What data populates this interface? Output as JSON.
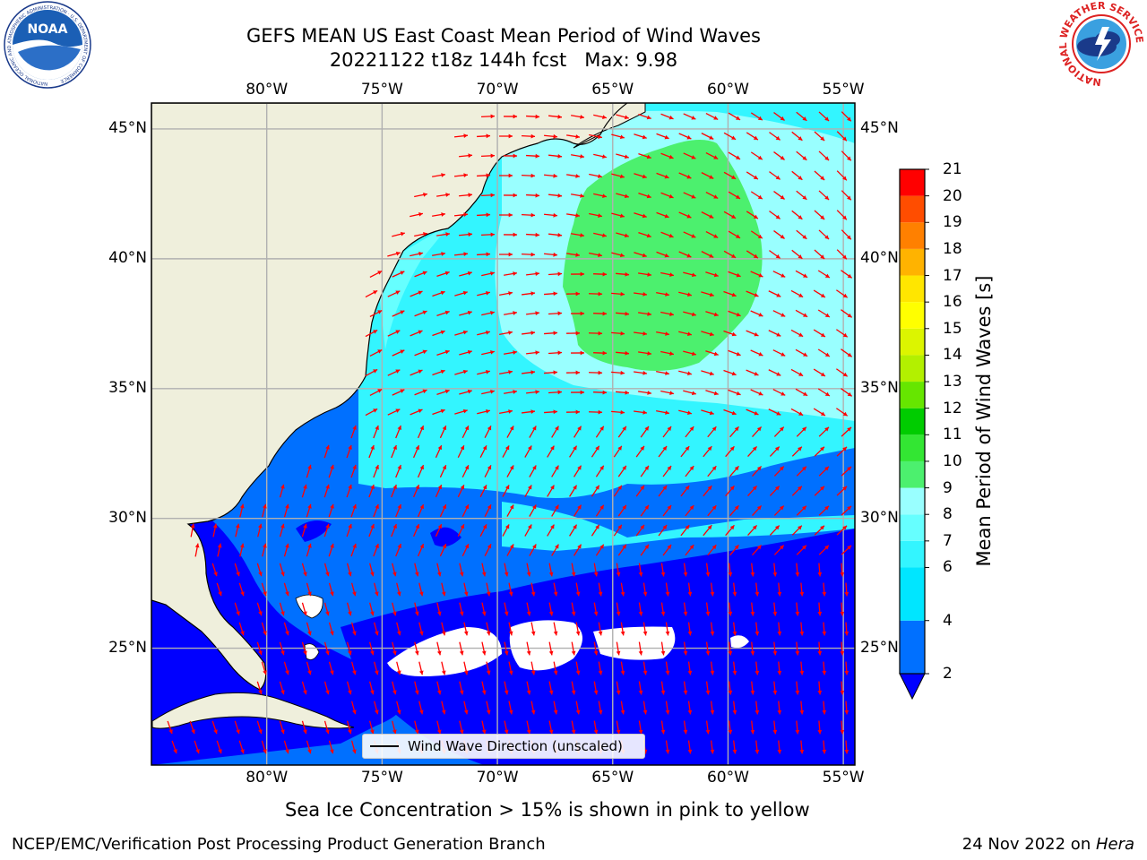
{
  "header": {
    "title_line1": "GEFS MEAN US East Coast Mean Period of Wind Waves",
    "title_line2": "20221122 t18z 144h fcst   Max: 9.98"
  },
  "map": {
    "lon_ticks": [
      "80°W",
      "75°W",
      "70°W",
      "65°W",
      "60°W",
      "55°W"
    ],
    "lat_ticks": [
      "45°N",
      "40°N",
      "35°N",
      "30°N",
      "25°N"
    ],
    "lon_range": [
      -85,
      -54.5
    ],
    "lat_range": [
      20.5,
      46
    ],
    "legend_label": "Wind Wave Direction (unscaled)",
    "arrow_color": "#ff0000",
    "land_color": "#efefdc",
    "grid_color": "#b0b0b0"
  },
  "colorbar": {
    "label": "Mean Period of Wind Waves [s]",
    "tick_values": [
      "2",
      "4",
      "6",
      "7",
      "8",
      "9",
      "10",
      "11",
      "12",
      "13",
      "14",
      "15",
      "16",
      "17",
      "18",
      "19",
      "20",
      "21"
    ],
    "levels": [
      2,
      4,
      6,
      7,
      8,
      9,
      10,
      11,
      12,
      13,
      14,
      15,
      16,
      17,
      18,
      19,
      20,
      21
    ],
    "colors": [
      "#0070ff",
      "#00e6ff",
      "#33f5ff",
      "#66ffff",
      "#99ffff",
      "#4cf06e",
      "#33e633",
      "#00cc00",
      "#66e600",
      "#b3f000",
      "#dcf500",
      "#ffff00",
      "#ffe600",
      "#ffb300",
      "#ff8000",
      "#ff4d00",
      "#ff0000"
    ],
    "under_color": "#0000ff"
  },
  "notes": {
    "sea_ice": "Sea Ice Concentration > 15% is shown in pink to yellow"
  },
  "footer": {
    "left": "NCEP/EMC/Verification Post Processing Product Generation Branch",
    "right_prefix": "24 Nov 2022 on ",
    "right_host": "Hera"
  },
  "logos": {
    "noaa_text": "NOAA",
    "noaa_ring": "NATIONAL OCEANIC AND ATMOSPHERIC ADMINISTRATION · U.S. DEPARTMENT OF COMMERCE",
    "nws_ring": "NATIONAL WEATHER SERVICE"
  }
}
